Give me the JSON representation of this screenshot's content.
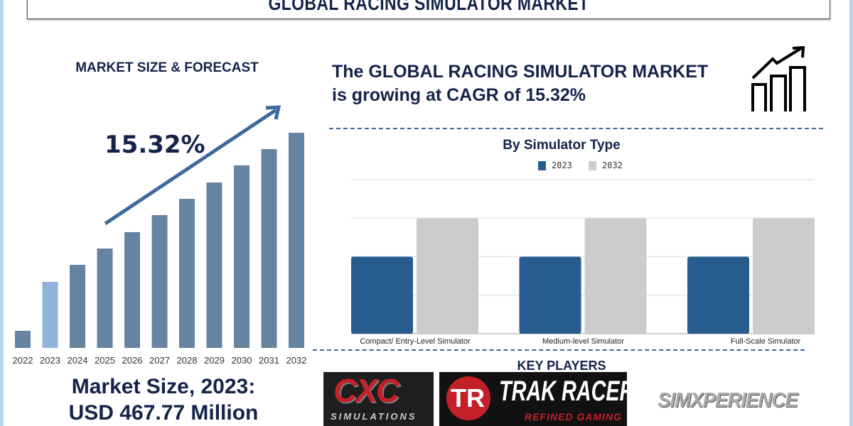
{
  "title": "GLOBAL RACING SIMULATOR MARKET",
  "left_panel": {
    "heading": "MARKET SIZE & FORECAST",
    "cagr_label": "15.32%",
    "market_size_line1": "Market Size, 2023:",
    "market_size_line2": "USD 467.77 Million"
  },
  "headline": {
    "line1": "The GLOBAL RACING SIMULATOR MARKET",
    "line2": "is growing at CAGR of 15.32%",
    "icon": "growth-chart-icon"
  },
  "key_players": {
    "heading": "KEY PLAYERS",
    "logos": [
      "CXC SIMULATIONS",
      "TRAK RACER REFINED GAMING",
      "SIMXPERIENCE"
    ]
  },
  "colors": {
    "navy_text": "#14234a",
    "forecast_bar": "#6783a2",
    "highlight_bar_2023": "#8fb3d9",
    "arrow": "#3d6a9a",
    "series_2023": "#275d8e",
    "series_2032": "#cccccc"
  },
  "chart_data": [
    {
      "type": "bar",
      "title": "",
      "categories": [
        "2022",
        "2023",
        "2024",
        "2025",
        "2026",
        "2027",
        "2028",
        "2029",
        "2030",
        "2031",
        "2032"
      ],
      "values": [
        121,
        467.77,
        588,
        704,
        820,
        941,
        1056,
        1172,
        1293,
        1408,
        1524
      ],
      "highlight": "2023",
      "xlabel": "",
      "ylabel": "",
      "grid": false
    },
    {
      "type": "bar",
      "title": "By Simulator Type",
      "categories": [
        "Compact/ Entry-Level Simulator",
        "Medium-level Simulator",
        "Full-Scale Simulator"
      ],
      "series": [
        {
          "name": "2023",
          "values": [
            2,
            2,
            2
          ]
        },
        {
          "name": "2032",
          "values": [
            3,
            3,
            3
          ]
        }
      ],
      "ylim": [
        0,
        4
      ],
      "grid": true,
      "legend": "top-center"
    }
  ]
}
